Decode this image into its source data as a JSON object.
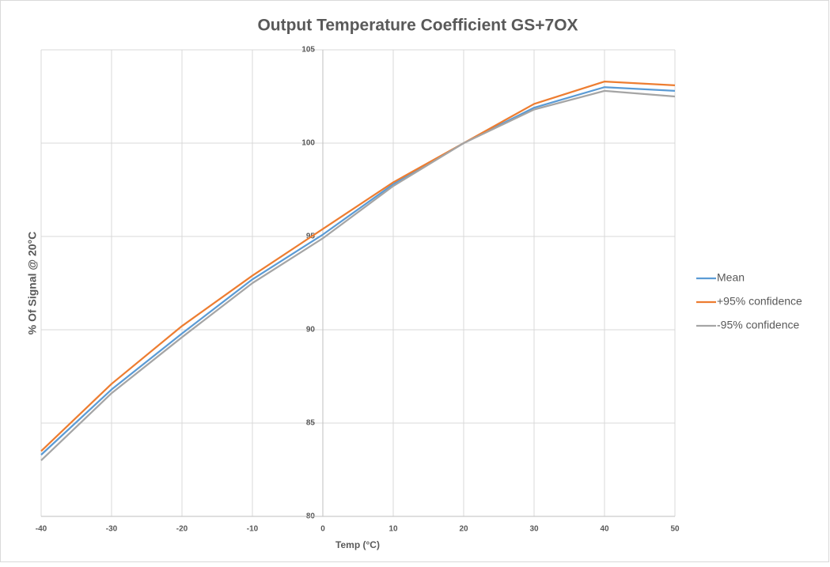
{
  "chart_data": {
    "type": "line",
    "title": "Output Temperature Coefficient GS+7OX",
    "x_label": "Temp (°C)",
    "y_label": "% Of Signal @ 20°C",
    "x": [
      -40,
      -30,
      -20,
      -10,
      0,
      10,
      20,
      30,
      40,
      50
    ],
    "series": [
      {
        "name": "Mean",
        "color": "#5b9bd5",
        "values": [
          83.3,
          86.8,
          89.8,
          92.7,
          95.1,
          97.8,
          100,
          101.9,
          103.0,
          102.8
        ]
      },
      {
        "name": "+95% confidence",
        "color": "#ed7d31",
        "values": [
          83.5,
          87.1,
          90.2,
          92.9,
          95.4,
          97.9,
          100,
          102.1,
          103.3,
          103.1
        ]
      },
      {
        "name": "-95% confidence",
        "color": "#a5a5a5",
        "values": [
          83.0,
          86.6,
          89.6,
          92.5,
          94.9,
          97.7,
          100,
          101.8,
          102.8,
          102.5
        ]
      }
    ],
    "xlim": [
      -40,
      50
    ],
    "xticks": [
      -40,
      -30,
      -20,
      -10,
      0,
      10,
      20,
      30,
      40,
      50
    ],
    "ylim": [
      80,
      105
    ],
    "yticks": [
      80,
      85,
      90,
      95,
      100,
      105
    ],
    "grid": true,
    "legend": "right"
  }
}
